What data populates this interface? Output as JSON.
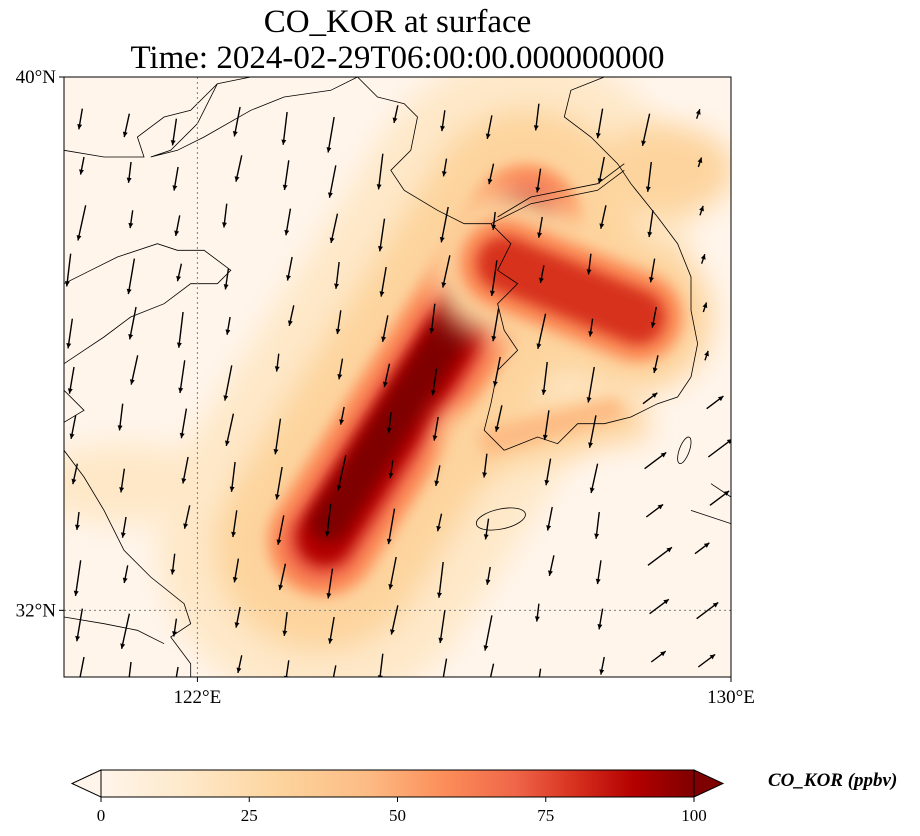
{
  "chart_data": {
    "type": "heatmap",
    "title": "CO_KOR at surface",
    "subtitle": "Time: 2024-02-29T06:00:00.000000000",
    "lon_range": [
      120,
      130
    ],
    "lat_range": [
      31,
      40
    ],
    "x_ticks": [
      {
        "value": 122,
        "label": "122°E"
      },
      {
        "value": 130,
        "label": "130°E"
      }
    ],
    "y_ticks": [
      {
        "value": 40,
        "label": "40°N"
      },
      {
        "value": 32,
        "label": "32°N"
      }
    ],
    "gridlines": {
      "lon": [
        122
      ],
      "lat": [
        32
      ]
    },
    "colorbar": {
      "label": "CO_KOR (ppbv)",
      "min": 0,
      "max": 100,
      "ticks": [
        0,
        25,
        50,
        75,
        100
      ],
      "extend": "both",
      "colormap": "OrRd"
    },
    "plume": {
      "axis_start": {
        "lon": 123.6,
        "lat": 32.6
      },
      "axis_end": {
        "lon": 127.2,
        "lat": 38.3
      },
      "peak_value": 100,
      "branch_end": {
        "lon": 128.6,
        "lat": 36.4
      }
    },
    "wind": "southward-to-northwestward flow over the Yellow Sea; westerlies over the East Sea"
  },
  "colors": {
    "background": "#fff5eb",
    "coast": "#000000",
    "grid": "#808080"
  }
}
